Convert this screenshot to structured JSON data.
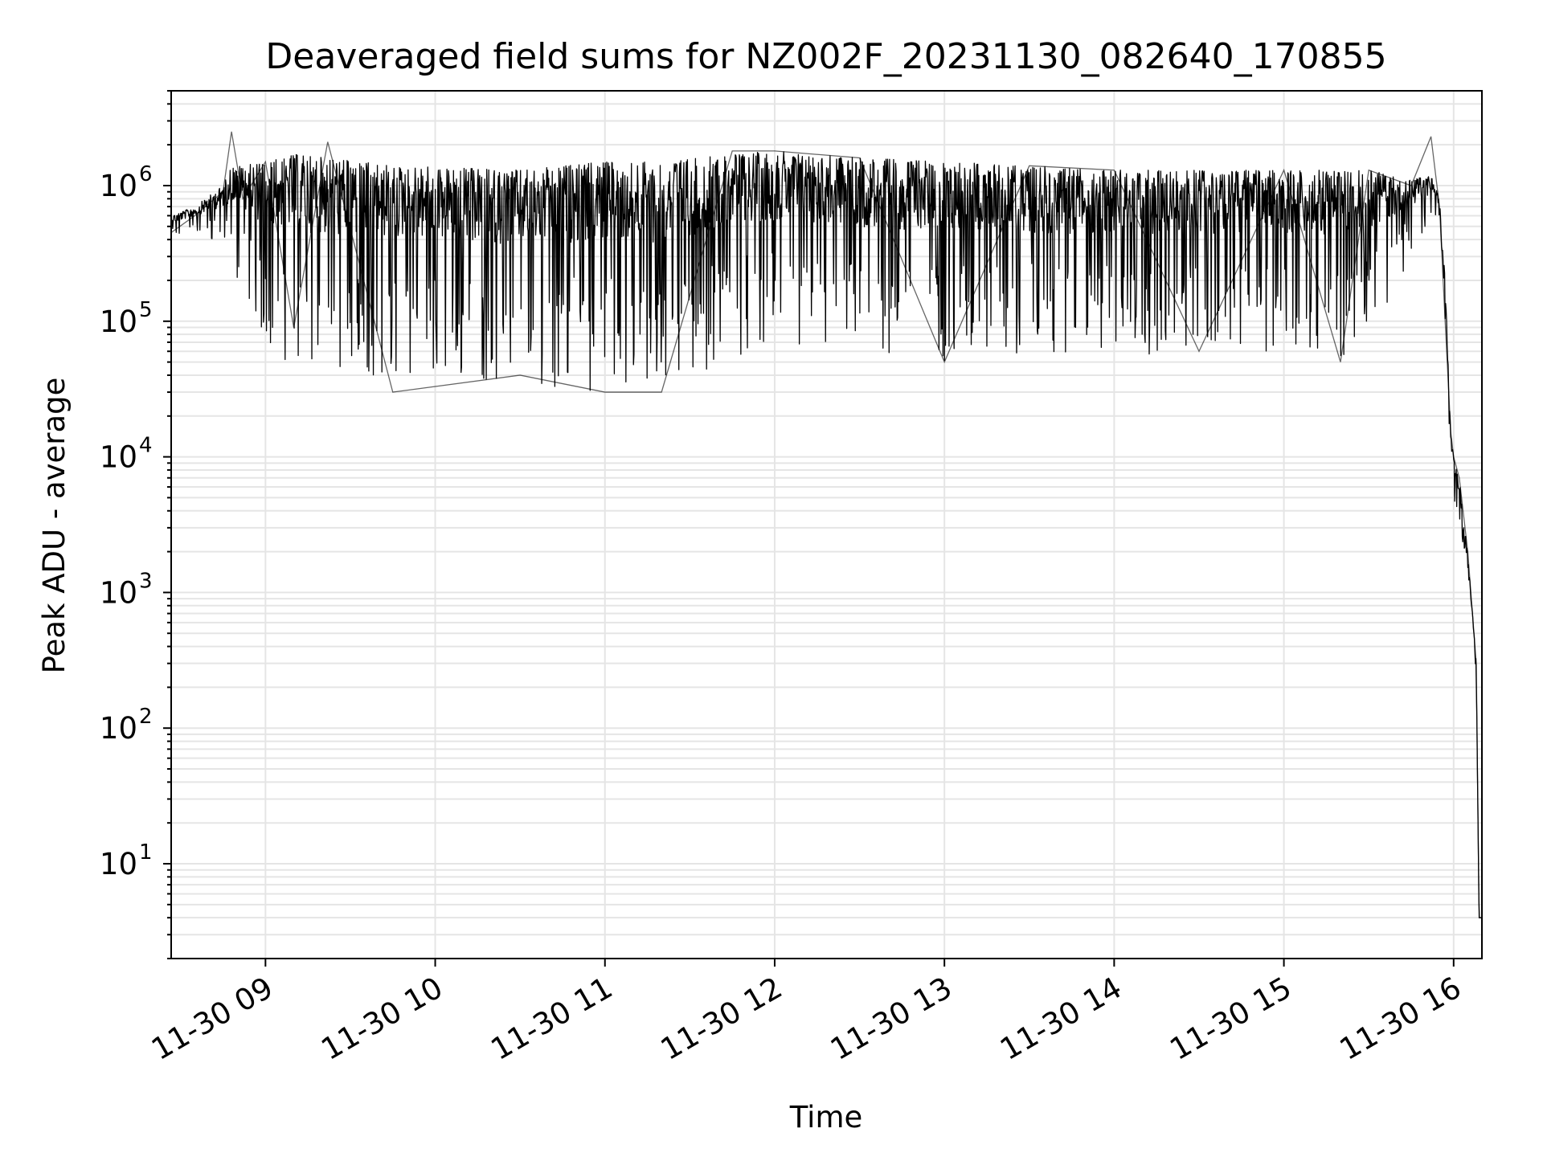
{
  "chart_data": {
    "type": "line",
    "title": "Deaveraged field sums for NZ002F_20231130_082640_170855",
    "xlabel": "Time",
    "ylabel": "Peak ADU - average",
    "yscale": "log",
    "ylim": [
      2,
      5000000
    ],
    "xlim": [
      "2023-11-30T08:26:40",
      "2023-11-30T16:10:00"
    ],
    "grid": true,
    "line_color": "#000000",
    "grid_color": "#e5e5e5",
    "x_tick_labels": [
      "11-30 09",
      "11-30 10",
      "11-30 11",
      "11-30 12",
      "11-30 13",
      "11-30 14",
      "11-30 15",
      "11-30 16"
    ],
    "y_tick_labels": [
      {
        "base": "10",
        "exp": "1"
      },
      {
        "base": "10",
        "exp": "2"
      },
      {
        "base": "10",
        "exp": "3"
      },
      {
        "base": "10",
        "exp": "4"
      },
      {
        "base": "10",
        "exp": "5"
      },
      {
        "base": "10",
        "exp": "6"
      }
    ],
    "series": [
      {
        "x": [
          "2023-11-30T08:26:40",
          "2023-11-30T08:35",
          "2023-11-30T08:45",
          "2023-11-30T08:48",
          "2023-11-30T08:52",
          "2023-11-30T09:00",
          "2023-11-30T09:10",
          "2023-11-30T09:22",
          "2023-11-30T09:45",
          "2023-11-30T10:30",
          "2023-11-30T11:00",
          "2023-11-30T11:20",
          "2023-11-30T11:45",
          "2023-11-30T12:00",
          "2023-11-30T12:30",
          "2023-11-30T13:00",
          "2023-11-30T13:30",
          "2023-11-30T14:00",
          "2023-11-30T14:30",
          "2023-11-30T15:00",
          "2023-11-30T15:20",
          "2023-11-30T15:30",
          "2023-11-30T15:45",
          "2023-11-30T15:52",
          "2023-11-30T15:55",
          "2023-11-30T15:57",
          "2023-11-30T15:59",
          "2023-11-30T16:00",
          "2023-11-30T16:02",
          "2023-11-30T16:05",
          "2023-11-30T16:08",
          "2023-11-30T16:09",
          "2023-11-30T16:10"
        ],
        "y": [
          450000,
          600000,
          900000,
          2500000,
          800000,
          1500000,
          90000,
          2100000,
          30000,
          40000,
          30000,
          30000,
          1800000,
          1800000,
          1600000,
          50000,
          1400000,
          1300000,
          60000,
          1300000,
          50000,
          1300000,
          1000000,
          2300000,
          700000,
          100000,
          15000,
          10000,
          7000,
          2000,
          300,
          4,
          4
        ],
        "envelope_upper": [
          600000,
          700000,
          1000000,
          1400000,
          1400000,
          1500000,
          1700000,
          1600000,
          1400000,
          1300000,
          1500000,
          1500000,
          1700000,
          1800000,
          1600000,
          1500000,
          1400000,
          1300000,
          1300000,
          1300000,
          1300000,
          1300000,
          1100000,
          1200000,
          800000,
          200000,
          15000,
          10000,
          7000,
          2000,
          300,
          4,
          4
        ],
        "envelope_lower": [
          400000,
          450000,
          350000,
          250000,
          150000,
          70000,
          45000,
          35000,
          40000,
          35000,
          30000,
          30000,
          55000,
          60000,
          55000,
          50000,
          55000,
          55000,
          60000,
          60000,
          55000,
          70000,
          300000,
          500000,
          600000,
          100000,
          6000,
          4000,
          3000,
          1500,
          200,
          4,
          4
        ]
      }
    ]
  }
}
